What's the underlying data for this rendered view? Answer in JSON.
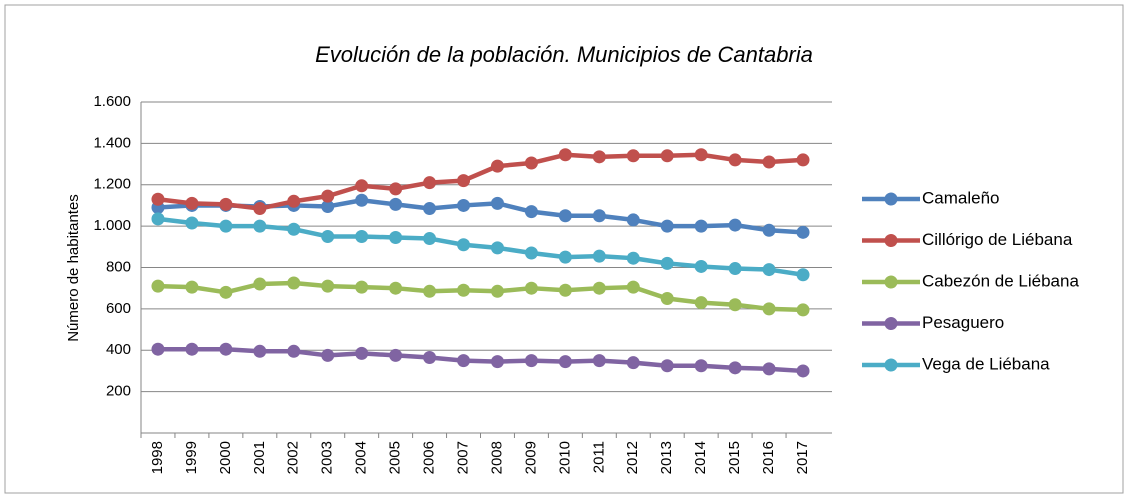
{
  "chart_data": {
    "type": "line",
    "title": "Evolución de la población. Municipios de Cantabria",
    "ylabel": "Número de habitantes",
    "categories": [
      "1998",
      "1999",
      "2000",
      "2001",
      "2002",
      "2003",
      "2004",
      "2005",
      "2006",
      "2007",
      "2008",
      "2009",
      "2010",
      "2011",
      "2012",
      "2013",
      "2014",
      "2015",
      "2016",
      "2017"
    ],
    "series": [
      {
        "name": "Camaleño",
        "color": "#4f81bd",
        "values": [
          1090,
          1100,
          1100,
          1095,
          1100,
          1095,
          1125,
          1105,
          1085,
          1100,
          1110,
          1070,
          1050,
          1050,
          1030,
          1000,
          1000,
          1005,
          980,
          970
        ]
      },
      {
        "name": "Cillórigo de Liébana",
        "color": "#c0504d",
        "values": [
          1130,
          1110,
          1105,
          1085,
          1120,
          1145,
          1195,
          1180,
          1210,
          1220,
          1290,
          1305,
          1345,
          1335,
          1340,
          1340,
          1345,
          1320,
          1310,
          1320
        ]
      },
      {
        "name": "Cabezón de Liébana",
        "color": "#9bbb59",
        "values": [
          710,
          705,
          680,
          720,
          725,
          710,
          705,
          700,
          685,
          690,
          685,
          700,
          690,
          700,
          705,
          650,
          630,
          620,
          600,
          595
        ]
      },
      {
        "name": "Pesaguero",
        "color": "#8064a2",
        "values": [
          405,
          405,
          405,
          395,
          395,
          375,
          385,
          375,
          365,
          350,
          345,
          350,
          345,
          350,
          340,
          325,
          325,
          315,
          310,
          300
        ]
      },
      {
        "name": "Vega de Liébana",
        "color": "#4bacc6",
        "values": [
          1035,
          1015,
          1000,
          1000,
          985,
          950,
          950,
          945,
          940,
          910,
          895,
          870,
          850,
          855,
          845,
          820,
          805,
          795,
          790,
          765
        ]
      }
    ],
    "ylim": [
      0,
      1600
    ],
    "yticks": [
      200,
      400,
      600,
      800,
      {
        "value": 1000,
        "label": "1.000"
      },
      {
        "value": 1200,
        "label": "1.200"
      },
      {
        "value": 1400,
        "label": "1.400"
      },
      {
        "value": 1600,
        "label": "1.600"
      }
    ],
    "grid": true,
    "legend": "right"
  }
}
